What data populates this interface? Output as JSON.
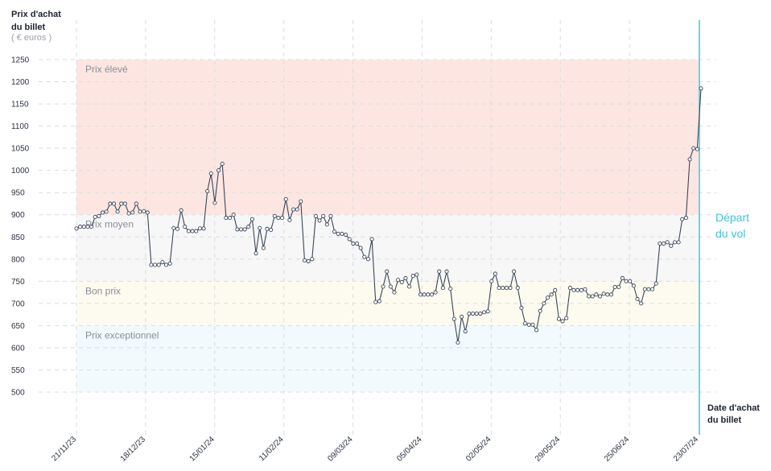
{
  "chart_data": {
    "type": "line",
    "ylabel": [
      "Prix d'achat",
      "du billet"
    ],
    "yunit": "( € euros )",
    "xlabel": [
      "Date d'achat",
      "du billet"
    ],
    "depart_label": [
      "Départ",
      "du vol"
    ],
    "ylim": [
      450,
      1250
    ],
    "yticks": [
      500,
      550,
      600,
      650,
      700,
      750,
      800,
      850,
      900,
      950,
      1000,
      1050,
      1100,
      1150,
      1200,
      1250
    ],
    "xticks": [
      "21/11/23",
      "18/12/23",
      "15/01/24",
      "11/02/24",
      "09/03/24",
      "05/04/24",
      "02/05/24",
      "29/05/24",
      "25/06/24",
      "23/07/24"
    ],
    "zones": [
      {
        "label": "Prix élevé",
        "from": 900,
        "to": 1250,
        "color": "#fde6e1"
      },
      {
        "label": "Prix moyen",
        "from": 750,
        "to": 900,
        "color": "#f7f7f7"
      },
      {
        "label": "Bon prix",
        "from": 650,
        "to": 750,
        "color": "#fdfbef"
      },
      {
        "label": "Prix exceptionnel",
        "from": 500,
        "to": 650,
        "color": "#f2fafd"
      }
    ],
    "series": [
      {
        "values": [
          869,
          873,
          873,
          873,
          873,
          895,
          897,
          905,
          907,
          925,
          925,
          907,
          925,
          925,
          903,
          905,
          925,
          907,
          908,
          905,
          787,
          787,
          787,
          793,
          787,
          790,
          870,
          868,
          910,
          873,
          863,
          863,
          863,
          869,
          869,
          953,
          993,
          927,
          1000,
          1015,
          893,
          893,
          900,
          867,
          867,
          867,
          873,
          890,
          813,
          870,
          825,
          868,
          866,
          897,
          893,
          893,
          935,
          888,
          912,
          912,
          930,
          797,
          795,
          800,
          897,
          887,
          897,
          878,
          897,
          862,
          857,
          857,
          855,
          845,
          835,
          835,
          825,
          805,
          800,
          845,
          703,
          705,
          738,
          772,
          738,
          725,
          753,
          748,
          757,
          738,
          762,
          765,
          720,
          720,
          720,
          720,
          725,
          772,
          735,
          772,
          733,
          665,
          612,
          670,
          637,
          677,
          677,
          677,
          677,
          680,
          682,
          750,
          767,
          735,
          735,
          735,
          735,
          772,
          735,
          690,
          655,
          652,
          652,
          640,
          683,
          700,
          713,
          720,
          730,
          665,
          660,
          667,
          735,
          730,
          730,
          730,
          732,
          716,
          716,
          720,
          716,
          722,
          720,
          720,
          737,
          737,
          757,
          750,
          750,
          740,
          710,
          700,
          732,
          732,
          732,
          745,
          835,
          835,
          838,
          830,
          838,
          838,
          890,
          893,
          1025,
          1050,
          1048,
          1185
        ]
      }
    ]
  }
}
